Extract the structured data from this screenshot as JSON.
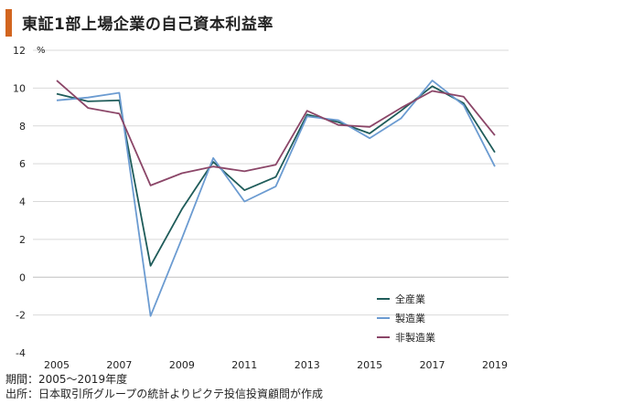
{
  "title": "東証1部上場企業の自己資本利益率",
  "colors": {
    "accent_bar": "#d2651f",
    "gridline": "#d9d9d9",
    "zero_line": "#bfbfbf",
    "text": "#222222"
  },
  "footnotes": {
    "period": "期間：2005～2019年度",
    "source": "出所：日本取引所グループの統計よりピクテ投信投資顧問が作成"
  },
  "chart_data": {
    "type": "line",
    "title": "東証1部上場企業の自己資本利益率",
    "unit": "%",
    "x": [
      2005,
      2006,
      2007,
      2008,
      2009,
      2010,
      2011,
      2012,
      2013,
      2014,
      2015,
      2016,
      2017,
      2018,
      2019
    ],
    "x_tick_labels": [
      "2005",
      "2007",
      "2009",
      "2011",
      "2013",
      "2015",
      "2017",
      "2019"
    ],
    "y_ticks": [
      12,
      10,
      8,
      6,
      4,
      2,
      0,
      -2,
      -4
    ],
    "ylim": [
      -4,
      12
    ],
    "grid": "horizontal",
    "legend_position": "bottom-right",
    "series": [
      {
        "name": "全産業",
        "color": "#1f5c5a",
        "values": [
          9.7,
          9.3,
          9.35,
          0.6,
          3.6,
          6.1,
          4.6,
          5.3,
          8.6,
          8.2,
          7.6,
          8.8,
          10.1,
          9.2,
          6.6
        ]
      },
      {
        "name": "製造業",
        "color": "#6b9bd1",
        "values": [
          9.35,
          9.5,
          9.75,
          -2.05,
          2.05,
          6.3,
          4.0,
          4.8,
          8.5,
          8.3,
          7.35,
          8.4,
          10.4,
          9.1,
          5.85
        ]
      },
      {
        "name": "非製造業",
        "color": "#8b4668",
        "values": [
          10.4,
          8.95,
          8.65,
          4.85,
          5.5,
          5.85,
          5.6,
          5.95,
          8.8,
          8.05,
          7.95,
          8.95,
          9.85,
          9.55,
          7.5
        ]
      }
    ]
  }
}
